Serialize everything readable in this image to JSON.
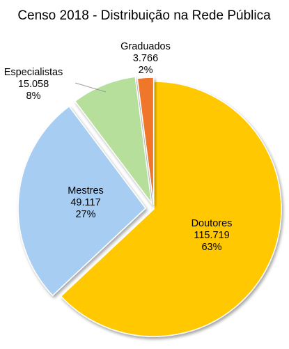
{
  "chart_data": {
    "type": "pie",
    "title": "Censo 2018 - Distribuição na Rede Pública",
    "slices": [
      {
        "label": "Doutores",
        "value": 115719,
        "value_text": "115.719",
        "percent_text": "63%",
        "color": "#FFC800"
      },
      {
        "label": "Mestres",
        "value": 49117,
        "value_text": "49.117",
        "percent_text": "27%",
        "color": "#A7CDF2"
      },
      {
        "label": "Especialistas",
        "value": 15058,
        "value_text": "15.058",
        "percent_text": "8%",
        "color": "#B5DF9A"
      },
      {
        "label": "Graduados",
        "value": 3766,
        "value_text": "3.766",
        "percent_text": "2%",
        "color": "#F0762A"
      }
    ],
    "slice_order": "clockwise from 12 o'clock",
    "label_stroke_color": "#9A9A9A",
    "legend": "none"
  }
}
